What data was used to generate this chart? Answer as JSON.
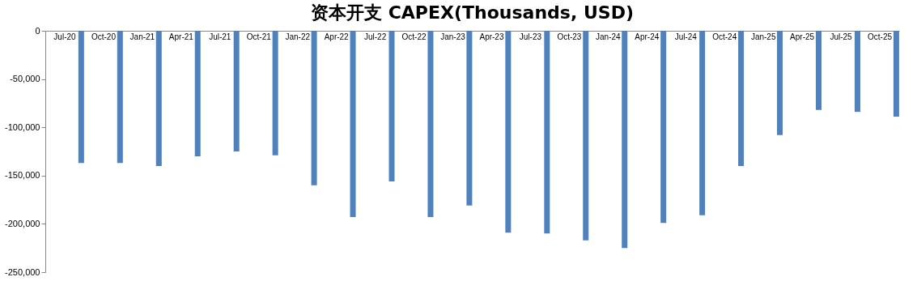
{
  "chart_data": {
    "type": "bar",
    "title": "资本开支 CAPEX(Thousands, USD)",
    "categories": [
      "Jul-20",
      "Oct-20",
      "Jan-21",
      "Apr-21",
      "Jul-21",
      "Oct-21",
      "Jan-22",
      "Apr-22",
      "Jul-22",
      "Oct-22",
      "Jan-23",
      "Apr-23",
      "Jul-23",
      "Oct-23",
      "Jan-24",
      "Apr-24",
      "Jul-24",
      "Oct-24",
      "Jan-25",
      "Apr-25",
      "Jul-25",
      "Oct-25"
    ],
    "values": [
      -137000,
      -137000,
      -140000,
      -130000,
      -125000,
      -129000,
      -160000,
      -193000,
      -156000,
      -193000,
      -181000,
      -209000,
      -210000,
      -217000,
      -225000,
      -199000,
      -191000,
      -140000,
      -108000,
      -82000,
      -84000,
      -89000
    ],
    "color": "#4f81bd",
    "ylim": [
      -250000,
      0
    ],
    "yticks": [
      {
        "value": -250000,
        "label": "-250,000"
      },
      {
        "value": -200000,
        "label": "-200,000"
      },
      {
        "value": -150000,
        "label": "-150,000"
      },
      {
        "value": -100000,
        "label": "-100,000"
      },
      {
        "value": -50000,
        "label": "-50,000"
      },
      0
    ],
    "grid": false
  }
}
